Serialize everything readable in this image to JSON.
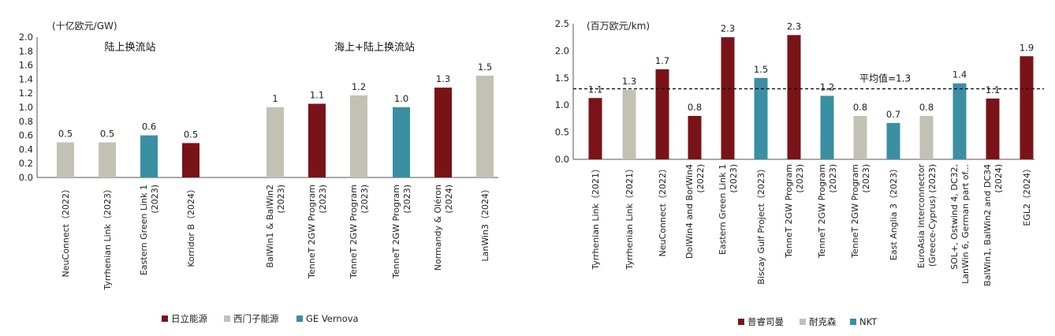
{
  "chart_data": [
    {
      "type": "bar",
      "unit_label": "(十亿欧元/GW)",
      "ylim": [
        0,
        2.0
      ],
      "yticks": [
        "0.0",
        "0.2",
        "0.4",
        "0.6",
        "0.8",
        "1.0",
        "1.2",
        "1.4",
        "1.6",
        "1.8",
        "2.0"
      ],
      "group_labels": [
        "陆上换流站",
        "海上+陆上换流站"
      ],
      "legend": [
        {
          "name": "日立能源",
          "color": "#7A1318"
        },
        {
          "name": "西门子能源",
          "color": "#C3C1B3"
        },
        {
          "name": "GE Vernova",
          "color": "#3A8FA3"
        }
      ],
      "bars": [
        {
          "label": [
            "NeuConnect（2022）"
          ],
          "value": 0.5,
          "text": "0.5",
          "vendor": 1
        },
        {
          "label": [
            "Tyrrhenian Link（2023）"
          ],
          "value": 0.5,
          "text": "0.5",
          "vendor": 1
        },
        {
          "label": [
            "Eastern Green Link 1",
            "(2023)"
          ],
          "value": 0.6,
          "text": "0.6",
          "vendor": 2
        },
        {
          "label": [
            "Korridor B（2024）"
          ],
          "value": 0.49,
          "text": "0.5",
          "vendor": 0
        },
        {
          "label": [
            "BalWin1 & BalWin2",
            "(2023)"
          ],
          "value": 1.0,
          "text": "1",
          "vendor": 1
        },
        {
          "label": [
            "TenneT 2GW Program",
            "(2023)"
          ],
          "value": 1.05,
          "text": "1.1",
          "vendor": 0
        },
        {
          "label": [
            "TenneT 2GW Program",
            "(2023)"
          ],
          "value": 1.17,
          "text": "1.2",
          "vendor": 1
        },
        {
          "label": [
            "TenneT 2GW Program",
            "(2023)"
          ],
          "value": 1.0,
          "text": "1.0",
          "vendor": 2
        },
        {
          "label": [
            "Normandy & Oléron",
            "(2024)"
          ],
          "value": 1.28,
          "text": "1.3",
          "vendor": 0
        },
        {
          "label": [
            "LanWin3（2024）"
          ],
          "value": 1.45,
          "text": "1.5",
          "vendor": 1
        }
      ]
    },
    {
      "type": "bar",
      "unit_label": "(百万欧元/km)",
      "ylim": [
        0,
        2.5
      ],
      "yticks": [
        "0.0",
        "0.5",
        "1.0",
        "1.5",
        "2.0",
        "2.5"
      ],
      "average": {
        "value": 1.3,
        "label": "平均值=1.3"
      },
      "legend": [
        {
          "name": "普睿司曼",
          "color": "#7A1318"
        },
        {
          "name": "耐克森",
          "color": "#C3C1B3"
        },
        {
          "name": "NKT",
          "color": "#3A8FA3"
        }
      ],
      "bars": [
        {
          "label": [
            "Tyrrhenian Link（2021）"
          ],
          "value": 1.13,
          "text": "1.1",
          "vendor": 0
        },
        {
          "label": [
            "Tyrrhenian Link（2021）"
          ],
          "value": 1.28,
          "text": "1.3",
          "vendor": 1
        },
        {
          "label": [
            "NeuConnect（2022）"
          ],
          "value": 1.66,
          "text": "1.7",
          "vendor": 0
        },
        {
          "label": [
            "DolWin4 and BorWin4",
            "(2022)"
          ],
          "value": 0.8,
          "text": "0.8",
          "vendor": 0
        },
        {
          "label": [
            "Eastern Green Link 1",
            "(2023)"
          ],
          "value": 2.25,
          "text": "2.3",
          "vendor": 0
        },
        {
          "label": [
            "Biscay Gulf Project（2023）"
          ],
          "value": 1.5,
          "text": "1.5",
          "vendor": 2
        },
        {
          "label": [
            "TenneT 2GW Program",
            "(2023)"
          ],
          "value": 2.29,
          "text": "2.3",
          "vendor": 0
        },
        {
          "label": [
            "TenneT 2GW Program",
            "(2023)"
          ],
          "value": 1.17,
          "text": "1.2",
          "vendor": 2
        },
        {
          "label": [
            "TenneT 2GW Program",
            "(2023)"
          ],
          "value": 0.8,
          "text": "0.8",
          "vendor": 1
        },
        {
          "label": [
            "East Anglia 3（2023）"
          ],
          "value": 0.67,
          "text": "0.7",
          "vendor": 2
        },
        {
          "label": [
            "EuroAsia Interconnector",
            "(Greece-Cyprus) (2023)"
          ],
          "value": 0.8,
          "text": "0.8",
          "vendor": 1
        },
        {
          "label": [
            "SOL+, Ostwind 4, DC32,",
            "LanWin 6, German part of..."
          ],
          "value": 1.4,
          "text": "1.4",
          "vendor": 2
        },
        {
          "label": [
            "BalWin1, BalWin2 and DC34",
            "(2024)"
          ],
          "value": 1.12,
          "text": "1.1",
          "vendor": 0
        },
        {
          "label": [
            "EGL2（2024）"
          ],
          "value": 1.9,
          "text": "1.9",
          "vendor": 0
        }
      ]
    }
  ]
}
